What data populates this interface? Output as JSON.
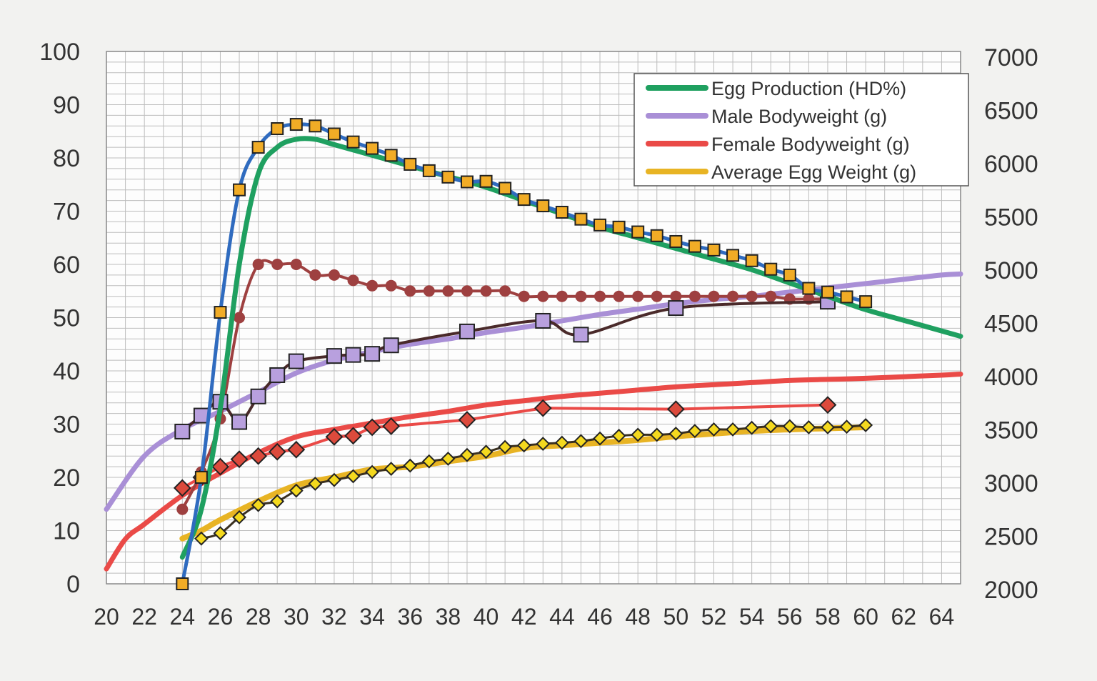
{
  "chart_data": {
    "type": "line",
    "title": "",
    "xlabel": "",
    "ylabel": "",
    "y2label": "",
    "x_range": [
      20,
      65
    ],
    "x_ticks": [
      20,
      22,
      24,
      26,
      28,
      30,
      32,
      34,
      36,
      38,
      40,
      42,
      44,
      46,
      48,
      50,
      52,
      54,
      56,
      58,
      60,
      62,
      64
    ],
    "y_left_range": [
      0,
      100
    ],
    "y_left_ticks": [
      0,
      10,
      20,
      30,
      40,
      50,
      60,
      70,
      80,
      90,
      100
    ],
    "y_right_range": [
      2000,
      7000
    ],
    "y_right_ticks": [
      2000,
      2500,
      3000,
      3500,
      4000,
      4500,
      5000,
      5500,
      6000,
      6500,
      7000
    ],
    "grid": true,
    "legend_position": "top-right",
    "colors": {
      "background": "#f2f2f0",
      "plot_area": "#fdfdfd",
      "grid": "#bdbdbd",
      "egg_production": "#1fa060",
      "male_bodyweight": "#a98fd6",
      "female_bodyweight": "#ea4a47",
      "average_egg_weight": "#e8b424",
      "actual_production": "#2f6bbf",
      "actual_production_marker": "#f1ac26",
      "actual_egg_weight_marker": "#f4d91e",
      "actual_male_line": "#4a2a2a",
      "actual_male_marker": "#b8a0de",
      "actual_female_line": "#9e4040",
      "actual_female_marker": "#dc4a3c"
    },
    "series": [
      {
        "name": "Egg Production (HD%)",
        "axis": "left",
        "role": "standard",
        "x": [
          24,
          25,
          26,
          27,
          28,
          29,
          30,
          31,
          32,
          34,
          36,
          38,
          40,
          42,
          44,
          46,
          48,
          50,
          52,
          54,
          56,
          58,
          60,
          62,
          65
        ],
        "y": [
          5,
          14,
          33,
          60,
          77,
          82,
          83.5,
          83.5,
          82.5,
          80.5,
          78.5,
          76.5,
          74.5,
          72,
          69.5,
          67,
          65,
          63,
          61,
          59,
          56.5,
          54,
          51.5,
          49.5,
          46.5
        ]
      },
      {
        "name": "Male Bodyweight (g)",
        "axis": "right",
        "role": "standard",
        "x": [
          20,
          22,
          24,
          26,
          28,
          30,
          32,
          34,
          36,
          38,
          40,
          42,
          44,
          46,
          48,
          50,
          52,
          54,
          56,
          58,
          60,
          62,
          64,
          65
        ],
        "y": [
          2700,
          3200,
          3450,
          3620,
          3800,
          3980,
          4100,
          4180,
          4250,
          4300,
          4360,
          4410,
          4470,
          4530,
          4580,
          4630,
          4670,
          4700,
          4740,
          4780,
          4820,
          4860,
          4900,
          4910
        ]
      },
      {
        "name": "Female Bodyweight (g)",
        "axis": "right",
        "role": "standard",
        "x": [
          20,
          21,
          22,
          24,
          26,
          28,
          30,
          32,
          34,
          36,
          38,
          40,
          42,
          44,
          46,
          48,
          50,
          52,
          54,
          56,
          58,
          60,
          62,
          64,
          65
        ],
        "y": [
          2140,
          2420,
          2560,
          2830,
          3040,
          3230,
          3380,
          3450,
          3510,
          3570,
          3620,
          3680,
          3720,
          3760,
          3790,
          3820,
          3850,
          3870,
          3890,
          3910,
          3920,
          3930,
          3945,
          3960,
          3970
        ]
      },
      {
        "name": "Average Egg Weight (g)",
        "axis": "left",
        "role": "standard",
        "x": [
          24,
          25,
          26,
          28,
          30,
          32,
          34,
          36,
          38,
          40,
          42,
          44,
          46,
          48,
          50,
          52,
          54,
          56,
          58,
          60
        ],
        "y": [
          8.5,
          10,
          12,
          15.5,
          18.5,
          20,
          21.5,
          22,
          23,
          24,
          25.5,
          26,
          26.5,
          27,
          27.7,
          28.2,
          28.7,
          29,
          29.2,
          29.4
        ]
      },
      {
        "name": "",
        "axis": "left",
        "role": "actual-production",
        "x": [
          24,
          25,
          26,
          27,
          28,
          29,
          30,
          31,
          32,
          33,
          34,
          35,
          36,
          37,
          38,
          39,
          40,
          41,
          42,
          43,
          44,
          45,
          46,
          47,
          48,
          49,
          50,
          51,
          52,
          53,
          54,
          55,
          56,
          57,
          58,
          59,
          60
        ],
        "y": [
          0,
          20,
          51,
          74,
          82,
          85.5,
          86.3,
          86,
          84.5,
          83,
          81.8,
          80.5,
          78.8,
          77.6,
          76.4,
          75.5,
          75.6,
          74.3,
          72.2,
          71,
          69.8,
          68.5,
          67.4,
          67,
          66.1,
          65.4,
          64.3,
          63.4,
          62.7,
          61.7,
          60.7,
          59.1,
          58,
          55.5,
          54.8,
          53.9,
          53
        ]
      },
      {
        "name": "",
        "axis": "right",
        "role": "actual-male",
        "x": [
          24,
          25,
          26,
          27,
          28,
          29,
          30,
          32,
          33,
          34,
          35,
          39,
          43,
          45,
          50,
          58
        ],
        "y": [
          3430,
          3580,
          3710,
          3520,
          3760,
          3960,
          4090,
          4140,
          4150,
          4160,
          4240,
          4370,
          4470,
          4340,
          4590,
          4650
        ]
      },
      {
        "name": "",
        "axis": "right",
        "role": "actual-female-peak",
        "x": [
          24,
          25,
          26,
          27,
          28,
          29,
          30,
          31,
          32,
          33,
          34,
          35,
          36,
          37,
          38,
          39,
          40,
          41,
          42,
          43,
          44,
          45,
          46,
          47,
          48,
          49,
          50,
          51,
          52,
          53,
          54,
          55,
          56,
          57,
          58
        ],
        "y": [
          14,
          21,
          31,
          50,
          60,
          60,
          60,
          58,
          58,
          57,
          56,
          56,
          55,
          55,
          55,
          55,
          55,
          55,
          54,
          54,
          54,
          54,
          54,
          54,
          54,
          54,
          54,
          54,
          54,
          54,
          54,
          54,
          53.5,
          53.5,
          53.5
        ],
        "y_axis_note": "left"
      },
      {
        "name": "",
        "axis": "right",
        "role": "actual-female",
        "x": [
          24,
          25,
          26,
          27,
          28,
          29,
          30,
          32,
          33,
          34,
          35,
          39,
          43,
          50,
          58
        ],
        "y": [
          2900,
          3000,
          3100,
          3170,
          3200,
          3240,
          3260,
          3380,
          3390,
          3470,
          3480,
          3540,
          3650,
          3640,
          3680
        ]
      },
      {
        "name": "",
        "axis": "left",
        "role": "actual-egg-weight",
        "x": [
          25,
          26,
          27,
          28,
          29,
          30,
          31,
          32,
          33,
          34,
          35,
          36,
          37,
          38,
          39,
          40,
          41,
          42,
          43,
          44,
          45,
          46,
          47,
          48,
          49,
          50,
          51,
          52,
          53,
          54,
          55,
          56,
          57,
          58,
          59,
          60
        ],
        "y": [
          8.5,
          9.5,
          12.5,
          14.8,
          15.5,
          17.5,
          18.8,
          19.5,
          20.2,
          21,
          21.6,
          22.2,
          23,
          23.5,
          24.2,
          24.8,
          25.7,
          26,
          26.3,
          26.5,
          26.8,
          27.3,
          27.8,
          28,
          28,
          28.2,
          28.7,
          29,
          29,
          29.3,
          29.6,
          29.6,
          29.4,
          29.4,
          29.5,
          29.8
        ]
      }
    ],
    "legend": [
      {
        "label": "Egg Production (HD%)",
        "color": "#1fa060"
      },
      {
        "label": "Male Bodyweight (g)",
        "color": "#a98fd6"
      },
      {
        "label": "Female Bodyweight (g)",
        "color": "#ea4a47"
      },
      {
        "label": "Average Egg Weight (g)",
        "color": "#e8b424"
      }
    ]
  }
}
